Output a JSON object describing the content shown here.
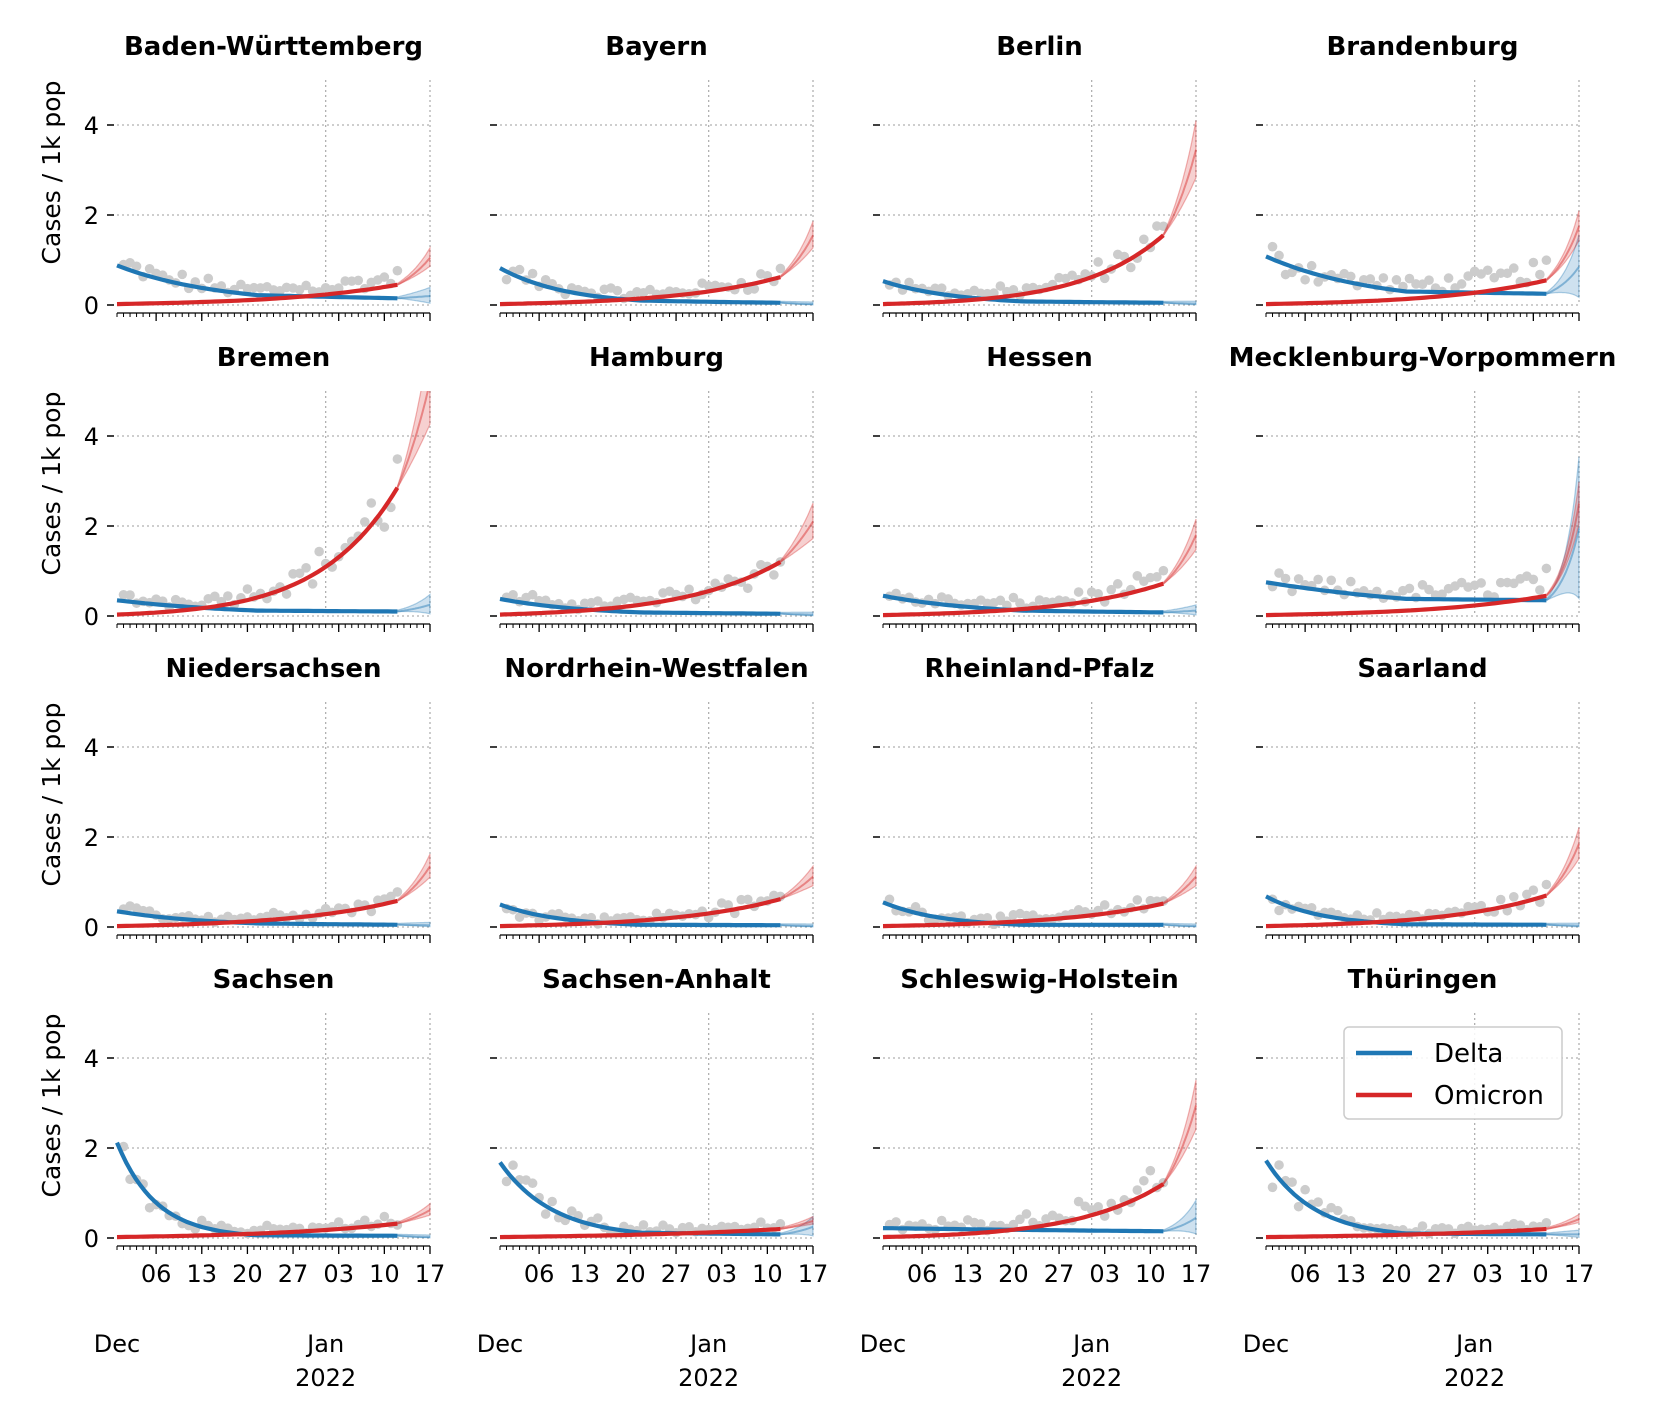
{
  "figure": {
    "ylabel": "Cases / 1k pop",
    "x_date_start": "2021-11-30",
    "x_date_end": "2022-01-17",
    "y_range": [
      0,
      5
    ],
    "y_ticks": [
      "0",
      "2",
      "4"
    ],
    "y_tick_values": [
      0,
      2,
      4
    ],
    "x_ticks": [
      {
        "date": "2021-12-06",
        "label": "06"
      },
      {
        "date": "2021-12-13",
        "label": "13"
      },
      {
        "date": "2021-12-20",
        "label": "20"
      },
      {
        "date": "2021-12-27",
        "label": "27"
      },
      {
        "date": "2022-01-03",
        "label": "03"
      },
      {
        "date": "2022-01-10",
        "label": "10"
      },
      {
        "date": "2022-01-17",
        "label": "17"
      }
    ],
    "x_major_labels": {
      "dec": "Dec",
      "jan": "Jan",
      "year": "2022"
    },
    "grid_dates": [
      "2022-01-01",
      "2022-01-17"
    ],
    "grid": "dotted",
    "fit_end_date": "2022-01-12",
    "colors": {
      "delta": "#1f77b4",
      "omicron": "#d62728",
      "observed": "#cccccc"
    }
  },
  "legend": {
    "placement": "upper-right of last panel",
    "entries": [
      {
        "name": "Delta",
        "color": "#1f77b4"
      },
      {
        "name": "Omicron",
        "color": "#d62728"
      }
    ]
  },
  "chart_data": {
    "type": "line",
    "series_names": [
      "Delta",
      "Omicron"
    ],
    "panels": [
      {
        "title": "Baden-Württemberg",
        "delta": [
          0.88,
          0.22,
          0.15
        ],
        "delta_end": 0.2,
        "omicron": [
          0.02,
          0.45,
          1.05
        ]
      },
      {
        "title": "Bayern",
        "delta": [
          0.82,
          0.1,
          0.05
        ],
        "delta_end": 0.02,
        "omicron": [
          0.02,
          0.62,
          1.55
        ]
      },
      {
        "title": "Berlin",
        "delta": [
          0.53,
          0.08,
          0.05
        ],
        "delta_end": 0.03,
        "omicron": [
          0.02,
          1.55,
          3.45
        ]
      },
      {
        "title": "Brandenburg",
        "delta": [
          1.08,
          0.3,
          0.25
        ],
        "delta_end": 0.85,
        "omicron": [
          0.02,
          0.55,
          1.75
        ]
      },
      {
        "title": "Bremen",
        "delta": [
          0.35,
          0.12,
          0.1
        ],
        "delta_end": 0.25,
        "omicron": [
          0.03,
          2.85,
          5.2
        ]
      },
      {
        "title": "Hamburg",
        "delta": [
          0.38,
          0.08,
          0.05
        ],
        "delta_end": 0.03,
        "omicron": [
          0.03,
          1.2,
          2.1
        ]
      },
      {
        "title": "Hessen",
        "delta": [
          0.45,
          0.12,
          0.08
        ],
        "delta_end": 0.12,
        "omicron": [
          0.02,
          0.72,
          1.8
        ]
      },
      {
        "title": "Mecklenburg-Vorpommern",
        "delta": [
          0.75,
          0.38,
          0.35
        ],
        "delta_end": 1.95,
        "omicron": [
          0.02,
          0.45,
          2.5
        ]
      },
      {
        "title": "Niedersachsen",
        "delta": [
          0.35,
          0.08,
          0.05
        ],
        "delta_end": 0.04,
        "omicron": [
          0.02,
          0.58,
          1.35
        ]
      },
      {
        "title": "Nordrhein-Westfalen",
        "delta": [
          0.5,
          0.05,
          0.04
        ],
        "delta_end": 0.02,
        "omicron": [
          0.02,
          0.62,
          1.12
        ]
      },
      {
        "title": "Rheinland-Pfalz",
        "delta": [
          0.55,
          0.05,
          0.05
        ],
        "delta_end": 0.02,
        "omicron": [
          0.02,
          0.52,
          1.12
        ]
      },
      {
        "title": "Saarland",
        "delta": [
          0.68,
          0.06,
          0.05
        ],
        "delta_end": 0.03,
        "omicron": [
          0.02,
          0.7,
          1.85
        ]
      },
      {
        "title": "Sachsen",
        "delta": [
          2.12,
          0.06,
          0.05
        ],
        "delta_end": 0.02,
        "omicron": [
          0.02,
          0.32,
          0.62
        ]
      },
      {
        "title": "Sachsen-Anhalt",
        "delta": [
          1.68,
          0.12,
          0.08
        ],
        "delta_end": 0.25,
        "omicron": [
          0.02,
          0.2,
          0.38
        ]
      },
      {
        "title": "Schleswig-Holstein",
        "delta": [
          0.22,
          0.18,
          0.15
        ],
        "delta_end": 0.45,
        "omicron": [
          0.02,
          1.2,
          2.95
        ]
      },
      {
        "title": "Thüringen",
        "delta": [
          1.72,
          0.1,
          0.08
        ],
        "delta_end": 0.08,
        "omicron": [
          0.02,
          0.2,
          0.42
        ]
      }
    ]
  }
}
